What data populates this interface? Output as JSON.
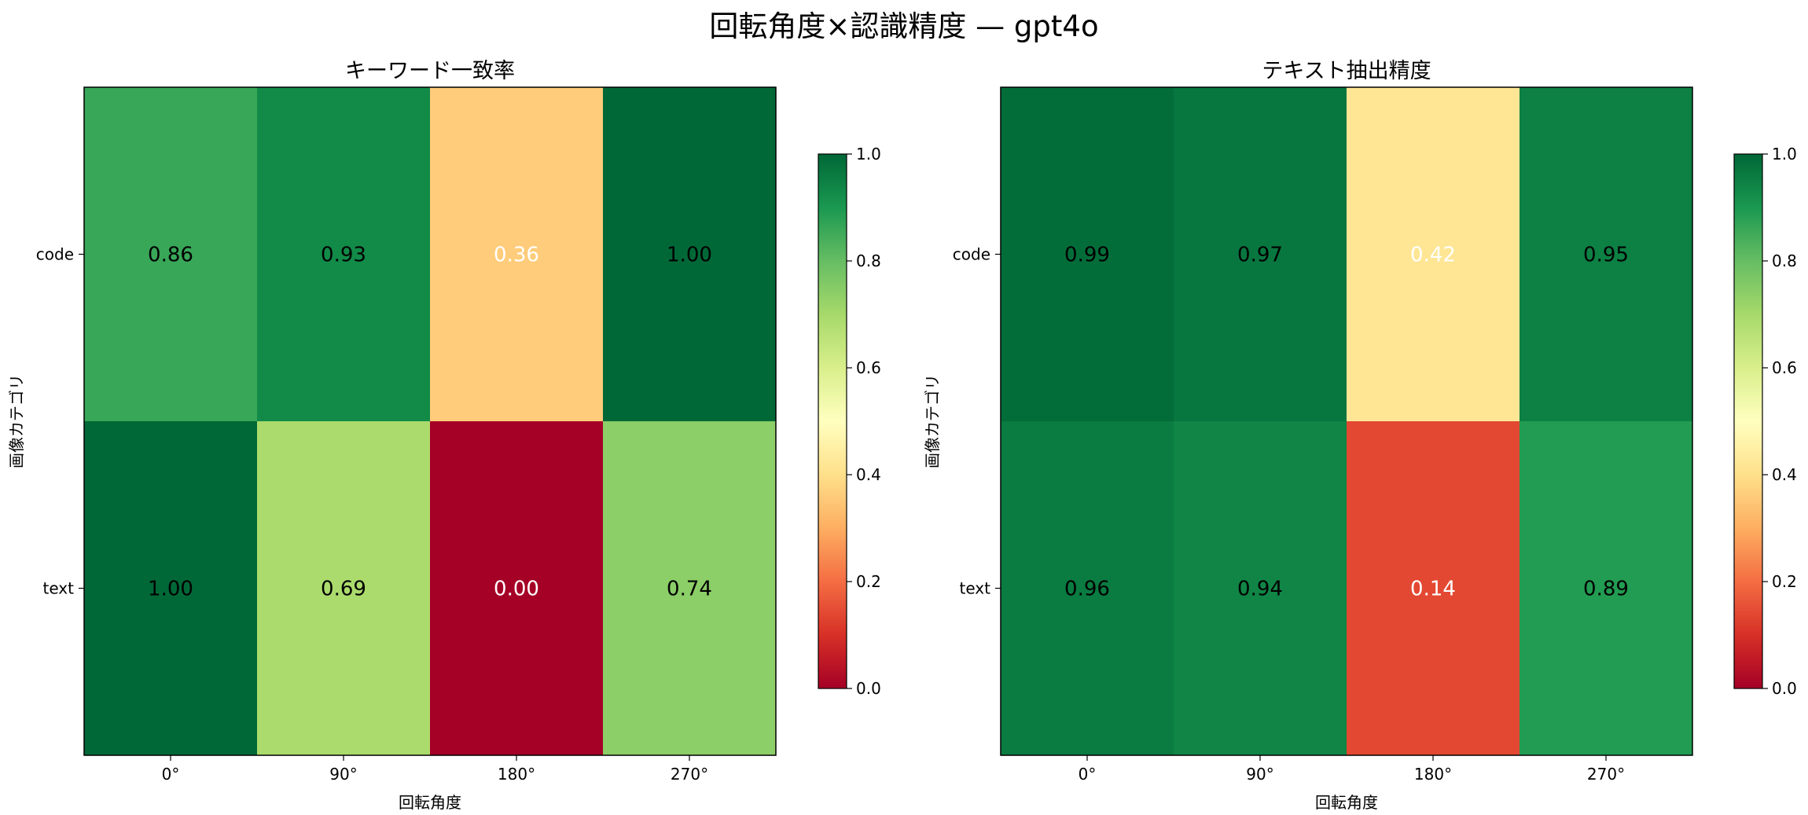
{
  "figure": {
    "suptitle": "回転角度×認識精度 — gpt4o"
  },
  "chart_data": [
    {
      "type": "heatmap",
      "title": "キーワード一致率",
      "xlabel": "回転角度",
      "ylabel": "画像カテゴリ",
      "x": [
        "0°",
        "90°",
        "180°",
        "270°"
      ],
      "y": [
        "code",
        "text"
      ],
      "values": [
        [
          0.86,
          0.93,
          0.36,
          1.0
        ],
        [
          1.0,
          0.69,
          0.0,
          0.74
        ]
      ],
      "labels": [
        [
          "0.86",
          "0.93",
          "0.36",
          "1.00"
        ],
        [
          "1.00",
          "0.69",
          "0.00",
          "0.74"
        ]
      ],
      "colormap": "RdYlGn",
      "vmin": 0.0,
      "vmax": 1.0,
      "colorbar_ticks": [
        "0.0",
        "0.2",
        "0.4",
        "0.6",
        "0.8",
        "1.0"
      ]
    },
    {
      "type": "heatmap",
      "title": "テキスト抽出精度",
      "xlabel": "回転角度",
      "ylabel": "画像カテゴリ",
      "x": [
        "0°",
        "90°",
        "180°",
        "270°"
      ],
      "y": [
        "code",
        "text"
      ],
      "values": [
        [
          0.99,
          0.97,
          0.42,
          0.95
        ],
        [
          0.96,
          0.94,
          0.14,
          0.89
        ]
      ],
      "labels": [
        [
          "0.99",
          "0.97",
          "0.42",
          "0.95"
        ],
        [
          "0.96",
          "0.94",
          "0.14",
          "0.89"
        ]
      ],
      "colormap": "RdYlGn",
      "vmin": 0.0,
      "vmax": 1.0,
      "colorbar_ticks": [
        "0.0",
        "0.2",
        "0.4",
        "0.6",
        "0.8",
        "1.0"
      ]
    }
  ]
}
